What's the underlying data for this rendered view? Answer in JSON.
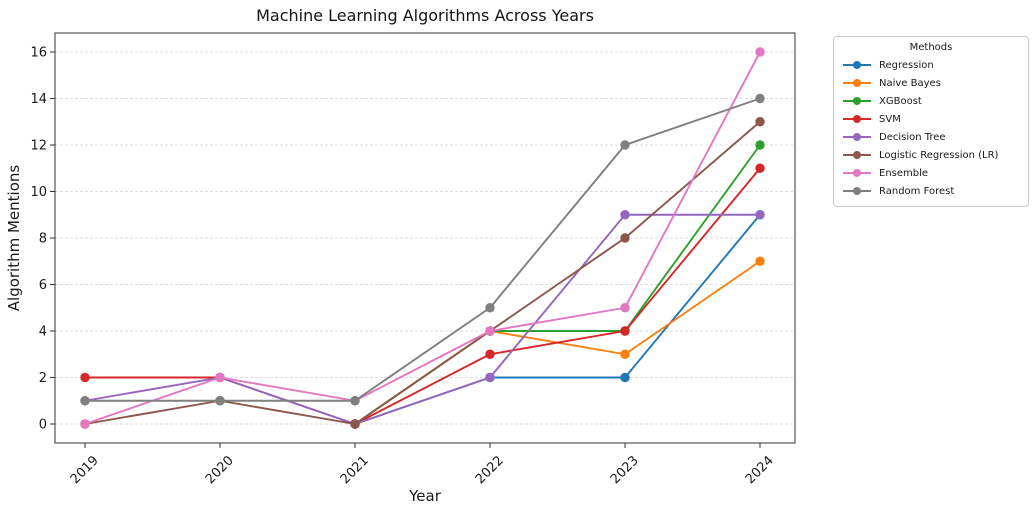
{
  "chart_data": {
    "type": "line",
    "title": "Machine Learning Algorithms Across Years",
    "xlabel": "Year",
    "ylabel": "Algorithm Mentions",
    "legend_title": "Methods",
    "legend_position": "outside-right",
    "grid": "horizontal-dashed-light",
    "categories": [
      "2019",
      "2020",
      "2021",
      "2022",
      "2023",
      "2024"
    ],
    "x_tick_rotation_deg": 45,
    "yticks": [
      0,
      2,
      4,
      6,
      8,
      10,
      12,
      14,
      16
    ],
    "ylim": [
      -0.8,
      16.8
    ],
    "series": [
      {
        "name": "Regression",
        "color": "#1f77b4",
        "values": [
          null,
          null,
          0,
          2,
          2,
          9
        ]
      },
      {
        "name": "Naive Bayes",
        "color": "#ff7f0e",
        "values": [
          null,
          null,
          0,
          4,
          3,
          7
        ]
      },
      {
        "name": "XGBoost",
        "color": "#2ca02c",
        "values": [
          null,
          null,
          0,
          4,
          4,
          12
        ]
      },
      {
        "name": "SVM",
        "color": "#d62728",
        "values": [
          2,
          2,
          0,
          3,
          4,
          11
        ]
      },
      {
        "name": "Decision Tree",
        "color": "#9467bd",
        "values": [
          1,
          2,
          0,
          2,
          9,
          9
        ]
      },
      {
        "name": "Logistic Regression (LR)",
        "color": "#8c564b",
        "values": [
          0,
          1,
          0,
          4,
          8,
          13
        ]
      },
      {
        "name": "Ensemble",
        "color": "#e377c2",
        "values": [
          0,
          2,
          1,
          4,
          5,
          16
        ]
      },
      {
        "name": "Random Forest",
        "color": "#7f7f7f",
        "values": [
          1,
          1,
          1,
          5,
          12,
          14
        ]
      }
    ]
  }
}
